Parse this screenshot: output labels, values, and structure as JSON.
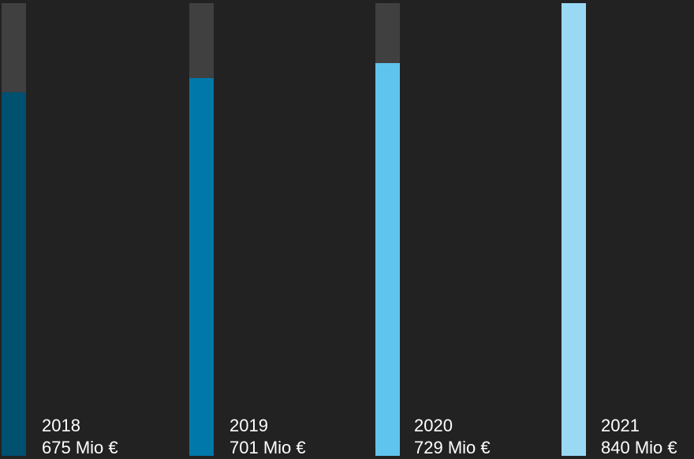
{
  "chart_data": {
    "type": "bar",
    "categories": [
      "2018",
      "2019",
      "2020",
      "2021"
    ],
    "values": [
      675,
      701,
      729,
      840
    ],
    "unit": "Mio €",
    "value_labels": [
      "675 Mio €",
      "701 Mio €",
      "729 Mio €",
      "840 Mio €"
    ],
    "ylim": [
      0,
      840
    ],
    "grid": false,
    "legend": "none",
    "colors": {
      "bars": [
        "#00506f",
        "#0078aa",
        "#60c5ee",
        "#9ad9f4"
      ],
      "track": "#404040",
      "background": "#222222",
      "text": "#ffffff"
    }
  }
}
